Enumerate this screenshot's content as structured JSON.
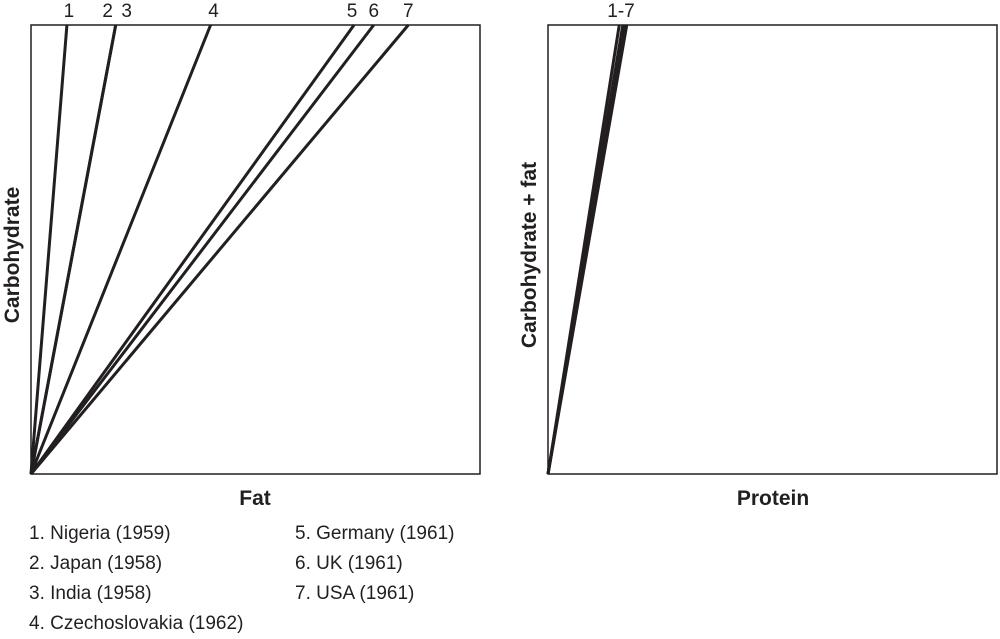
{
  "chart_data": [
    {
      "type": "line",
      "xlabel": "Fat",
      "ylabel": "Carbohydrate",
      "grid": false,
      "series": [
        {
          "label": "1",
          "slope": 12.5
        },
        {
          "label": "2",
          "slope": 5.3
        },
        {
          "label": "3",
          "slope": 5.3
        },
        {
          "label": "4",
          "slope": 2.5
        },
        {
          "label": "5",
          "slope": 1.39
        },
        {
          "label": "6",
          "slope": 1.31
        },
        {
          "label": "7",
          "slope": 1.19
        }
      ]
    },
    {
      "type": "line",
      "xlabel": "Protein",
      "ylabel": "Carbohydrate + fat",
      "grid": false,
      "series_label": "1-7",
      "series": [
        {
          "slope": 6.3
        },
        {
          "slope": 6.0
        },
        {
          "slope": 5.85
        },
        {
          "slope": 5.7
        }
      ]
    }
  ],
  "legend": [
    "1. Nigeria (1959)",
    "2. Japan (1958)",
    "3. India (1958)",
    "4. Czechoslovakia (1962)",
    "5. Germany  (1961)",
    "6. UK (1961)",
    "7. USA (1961)"
  ],
  "colors": {
    "ink": "#231f20",
    "background": "#ffffff"
  }
}
